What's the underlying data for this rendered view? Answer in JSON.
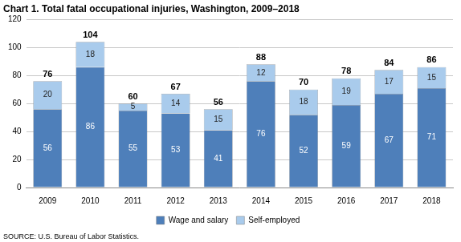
{
  "chart_data": {
    "type": "bar",
    "title": "Chart 1. Total fatal occupational injuries, Washington, 2009–2018",
    "source": "SOURCE: U.S. Bureau of Labor Statistics.",
    "categories": [
      "2009",
      "2010",
      "2011",
      "2012",
      "2013",
      "2014",
      "2015",
      "2016",
      "2017",
      "2018"
    ],
    "series": [
      {
        "name": "Wage and salary",
        "color": "#4e7fba",
        "values": [
          56,
          86,
          55,
          53,
          41,
          76,
          52,
          59,
          67,
          71
        ]
      },
      {
        "name": "Self-employed",
        "color": "#a9cbec",
        "values": [
          20,
          18,
          5,
          14,
          15,
          12,
          18,
          19,
          17,
          15
        ]
      }
    ],
    "totals": [
      76,
      104,
      60,
      67,
      56,
      88,
      70,
      78,
      84,
      86
    ],
    "stacked": true,
    "data_labels": true,
    "legend": "bottom",
    "grid": true,
    "ylim": [
      0,
      120
    ],
    "yticks": [
      0,
      20,
      40,
      60,
      80,
      100,
      120
    ]
  }
}
